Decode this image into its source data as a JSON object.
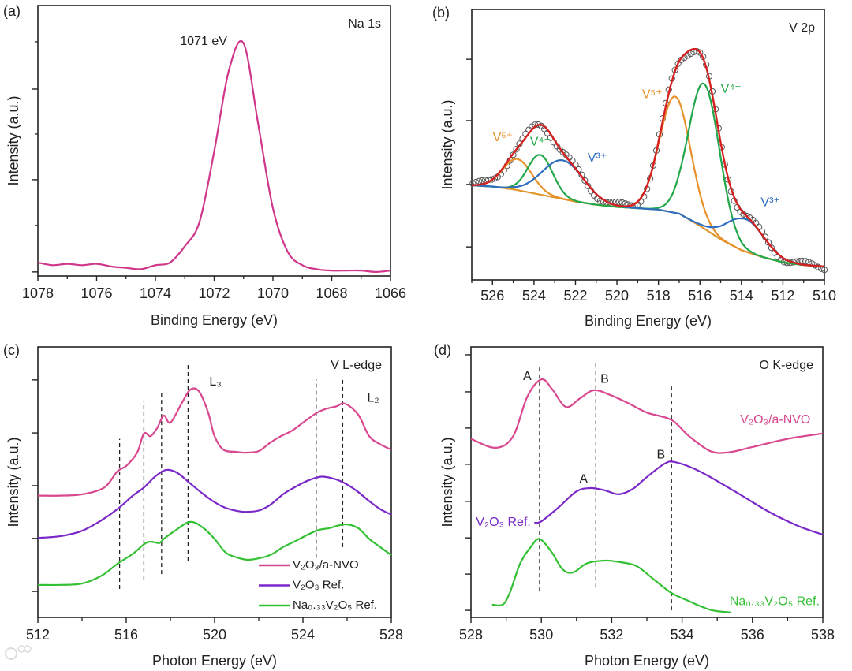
{
  "watermark": "大数跨境",
  "chart_data": [
    {
      "type": "line",
      "panel": "(a)",
      "title": "Na 1s",
      "xlabel": "Binding Energy (eV)",
      "ylabel": "Intensity (a.u.)",
      "xlim": [
        1078,
        1066
      ],
      "ylim": [
        0,
        1
      ],
      "xticks": [
        1078,
        1076,
        1074,
        1072,
        1070,
        1068,
        1066
      ],
      "xminor_step": 1,
      "yticks": [
        0.015,
        0.356,
        0.691
      ],
      "yminor": [
        0.187,
        0.525,
        0.866
      ],
      "series": [
        {
          "name": "Na 1s spectrum",
          "color": "#d0368a",
          "x": [
            1078,
            1077.5,
            1077,
            1076.5,
            1076,
            1075.5,
            1075,
            1074.5,
            1074,
            1073.5,
            1073,
            1072.5,
            1072,
            1071.5,
            1071,
            1070.5,
            1070,
            1069.5,
            1069,
            1068.5,
            1068,
            1067.5,
            1067,
            1066.5,
            1066
          ],
          "y": [
            0.05,
            0.04,
            0.045,
            0.04,
            0.045,
            0.035,
            0.03,
            0.025,
            0.04,
            0.05,
            0.11,
            0.2,
            0.46,
            0.76,
            0.86,
            0.56,
            0.25,
            0.09,
            0.04,
            0.025,
            0.02,
            0.02,
            0.02,
            0.015,
            0.02
          ]
        }
      ],
      "annotations": [
        {
          "text": "1071 eV",
          "x": 1072.36,
          "y": 0.866,
          "color": "#222222"
        }
      ]
    },
    {
      "type": "line",
      "panel": "(b)",
      "title": "V 2p",
      "xlabel": "Binding Energy (eV)",
      "ylabel": "Intensity (a.u.)",
      "xlim": [
        527,
        510
      ],
      "ylim": [
        0,
        1
      ],
      "xticks": [
        526,
        524,
        522,
        520,
        518,
        516,
        514,
        512,
        510
      ],
      "xminor_step": 1,
      "yticks": [
        0.122,
        0.353,
        0.589,
        0.816
      ],
      "yminor": [],
      "background": {
        "color": "#e0962e",
        "x": [
          527,
          526,
          525,
          524,
          523,
          522,
          521,
          520,
          519,
          518,
          517,
          516,
          515,
          514,
          513,
          512,
          511,
          510
        ],
        "y": [
          0.35,
          0.345,
          0.335,
          0.32,
          0.305,
          0.29,
          0.278,
          0.27,
          0.265,
          0.26,
          0.245,
          0.2,
          0.15,
          0.11,
          0.085,
          0.065,
          0.055,
          0.05
        ]
      },
      "components": [
        {
          "name": "V5+",
          "color": "#e8912a",
          "peaks": [
            {
              "center": 524.8,
              "height": 0.115,
              "sigma": 0.7
            },
            {
              "center": 517.2,
              "height": 0.43,
              "sigma": 0.75
            }
          ]
        },
        {
          "name": "V4+",
          "color": "#22a84a",
          "peaks": [
            {
              "center": 523.7,
              "height": 0.147,
              "sigma": 0.6
            },
            {
              "center": 515.8,
              "height": 0.535,
              "sigma": 0.75
            }
          ]
        },
        {
          "name": "V3+",
          "color": "#2f6fc0",
          "peaks": [
            {
              "center": 522.6,
              "height": 0.143,
              "sigma": 1.0
            },
            {
              "center": 513.8,
              "height": 0.12,
              "sigma": 0.9
            }
          ]
        }
      ],
      "fit_color": "#d62020",
      "data_marker_color": "#555555",
      "annotations": [
        {
          "text": "V⁵⁺",
          "x": 525.5,
          "y": 0.525,
          "color": "#e8912a"
        },
        {
          "text": "V⁴⁺",
          "x": 523.7,
          "y": 0.51,
          "color": "#22a84a"
        },
        {
          "text": "V³⁺",
          "x": 520.95,
          "y": 0.45,
          "color": "#2f6fc0"
        },
        {
          "text": "V⁵⁺",
          "x": 518.3,
          "y": 0.685,
          "color": "#e8912a"
        },
        {
          "text": "V⁴⁺",
          "x": 514.5,
          "y": 0.705,
          "color": "#22a84a"
        },
        {
          "text": "V³⁺",
          "x": 512.6,
          "y": 0.285,
          "color": "#2f6fc0"
        }
      ]
    },
    {
      "type": "line",
      "panel": "(c)",
      "title": "V L-edge",
      "xlabel": "Photon Energy (eV)",
      "ylabel": "Intensity (a.u.)",
      "xlim": [
        512,
        528
      ],
      "ylim": [
        0,
        1
      ],
      "xticks": [
        512,
        516,
        520,
        524,
        528
      ],
      "xminor_step": 2,
      "yticks": [
        0.096,
        0.292,
        0.487,
        0.682,
        0.878
      ],
      "yminor": [],
      "series": [
        {
          "name": "V₂O₃/a-NVO",
          "color": "#d9478f",
          "x": [
            512,
            513,
            514,
            515,
            515.6,
            516,
            516.5,
            516.8,
            517.1,
            517.4,
            517.7,
            518,
            518.5,
            518.9,
            519.3,
            519.7,
            520,
            520.4,
            521,
            521.4,
            522,
            522.5,
            523,
            523.5,
            524,
            524.6,
            525,
            525.5,
            525.9,
            526.5,
            527,
            527.5,
            528
          ],
          "y": [
            0.45,
            0.45,
            0.455,
            0.48,
            0.54,
            0.56,
            0.61,
            0.68,
            0.67,
            0.7,
            0.746,
            0.72,
            0.79,
            0.842,
            0.835,
            0.76,
            0.67,
            0.62,
            0.612,
            0.609,
            0.615,
            0.645,
            0.67,
            0.69,
            0.72,
            0.755,
            0.77,
            0.78,
            0.79,
            0.75,
            0.67,
            0.64,
            0.62
          ]
        },
        {
          "name": "V₂O₃ Ref.",
          "color": "#7a28c8",
          "x": [
            512,
            513,
            514,
            514.9,
            515.6,
            516.3,
            516.8,
            517.3,
            517.8,
            518.3,
            518.9,
            519.5,
            520,
            520.5,
            521,
            521.4,
            522,
            522.5,
            523.1,
            523.6,
            524.2,
            524.8,
            525.3,
            525.8,
            526.4,
            527,
            527.5,
            528
          ],
          "y": [
            0.294,
            0.3,
            0.32,
            0.36,
            0.4,
            0.45,
            0.48,
            0.52,
            0.545,
            0.535,
            0.495,
            0.455,
            0.426,
            0.405,
            0.394,
            0.39,
            0.395,
            0.415,
            0.455,
            0.48,
            0.505,
            0.52,
            0.515,
            0.5,
            0.47,
            0.43,
            0.4,
            0.38
          ]
        },
        {
          "name": "Na₀.₃₃V₂O₅ Ref.",
          "color": "#33c033",
          "x": [
            512,
            513,
            514,
            514.9,
            515.6,
            516.3,
            516.8,
            517.1,
            517.5,
            517.7,
            518.2,
            518.9,
            519.5,
            520,
            520.5,
            521,
            521.6,
            522.5,
            523.1,
            523.6,
            524.6,
            525.2,
            525.9,
            526.5,
            527,
            527.5,
            528
          ],
          "y": [
            0.12,
            0.12,
            0.125,
            0.155,
            0.198,
            0.235,
            0.27,
            0.28,
            0.275,
            0.29,
            0.32,
            0.353,
            0.33,
            0.29,
            0.24,
            0.222,
            0.213,
            0.23,
            0.26,
            0.28,
            0.32,
            0.33,
            0.344,
            0.33,
            0.29,
            0.26,
            0.23
          ]
        }
      ],
      "dashed_lines": [
        {
          "x": 515.7,
          "y0": 0.105,
          "y1": 0.66
        },
        {
          "x": 516.8,
          "y0": 0.14,
          "y1": 0.8
        },
        {
          "x": 517.6,
          "y0": 0.16,
          "y1": 0.84
        },
        {
          "x": 518.8,
          "y0": 0.21,
          "y1": 0.94
        },
        {
          "x": 524.6,
          "y0": 0.22,
          "y1": 0.88
        },
        {
          "x": 525.8,
          "y0": 0.26,
          "y1": 0.89
        }
      ],
      "annotations": [
        {
          "text": "L₃",
          "x": 520.04,
          "y": 0.87,
          "color": "#222222"
        },
        {
          "text": "L₂",
          "x": 527.18,
          "y": 0.81,
          "color": "#222222"
        }
      ],
      "legend": {
        "placement": "bottom-right",
        "entries": [
          "V₂O₃/a-NVO",
          "V₂O₃ Ref.",
          "Na₀.₃₃V₂O₅ Ref."
        ]
      }
    },
    {
      "type": "line",
      "panel": "(d)",
      "title": "O K-edge",
      "xlabel": "Photon Energy (eV)",
      "ylabel": "Intensity (a.u.)",
      "xlim": [
        528,
        538
      ],
      "ylim": [
        0,
        1
      ],
      "xticks": [
        528,
        530,
        532,
        534,
        536,
        538
      ],
      "xminor_step": 1,
      "yticks": [
        0.026,
        0.16,
        0.294,
        0.429,
        0.566,
        0.7,
        0.834,
        0.971
      ],
      "yminor": [],
      "series": [
        {
          "name": "V₂O₃/a-NVO",
          "color": "#d9478f",
          "x": [
            528,
            528.7,
            529.2,
            529.6,
            530,
            530.3,
            530.7,
            531.1,
            531.5,
            532,
            532.5,
            533,
            533.7,
            534.2,
            534.8,
            535.3,
            536,
            537,
            538
          ],
          "y": [
            0.66,
            0.627,
            0.67,
            0.816,
            0.88,
            0.845,
            0.778,
            0.81,
            0.84,
            0.82,
            0.79,
            0.757,
            0.73,
            0.67,
            0.615,
            0.61,
            0.63,
            0.66,
            0.68
          ]
        },
        {
          "name": "V₂O₃ Ref.",
          "color": "#7a28c8",
          "x": [
            529.8,
            530,
            530.5,
            531,
            531.4,
            531.8,
            532.2,
            532.6,
            533,
            533.5,
            533.8,
            534.5,
            535.5,
            536.5,
            537.3,
            538
          ],
          "y": [
            0.35,
            0.355,
            0.408,
            0.466,
            0.478,
            0.47,
            0.455,
            0.475,
            0.519,
            0.568,
            0.574,
            0.54,
            0.466,
            0.388,
            0.338,
            0.306
          ]
        },
        {
          "name": "Na₀.₃₃V₂O₅ Ref.",
          "color": "#33c033",
          "x": [
            528.6,
            528.9,
            529.1,
            529.4,
            529.7,
            529.95,
            530.3,
            530.6,
            530.9,
            531.3,
            531.8,
            532.2,
            532.7,
            533.2,
            533.7,
            534.2,
            534.8,
            535.4
          ],
          "y": [
            0.047,
            0.047,
            0.09,
            0.2,
            0.26,
            0.29,
            0.24,
            0.178,
            0.166,
            0.2,
            0.21,
            0.205,
            0.19,
            0.14,
            0.09,
            0.06,
            0.028,
            0.018
          ]
        }
      ],
      "dashed_lines": [
        {
          "x": 529.95,
          "y0": 0.096,
          "y1": 0.93
        },
        {
          "x": 531.55,
          "y0": 0.11,
          "y1": 0.945
        },
        {
          "x": 533.7,
          "y0": 0.026,
          "y1": 0.86
        }
      ],
      "annotations": [
        {
          "text": "A",
          "x": 529.6,
          "y": 0.89,
          "color": "#222222"
        },
        {
          "text": "B",
          "x": 531.8,
          "y": 0.88,
          "color": "#222222"
        },
        {
          "text": "A",
          "x": 531.2,
          "y": 0.51,
          "color": "#222222"
        },
        {
          "text": "B",
          "x": 533.4,
          "y": 0.6,
          "color": "#222222"
        },
        {
          "text": "V₂O₃/a-NVO",
          "x": 536.65,
          "y": 0.729,
          "color": "#d9478f"
        },
        {
          "text": "V₂O₃ Ref.",
          "x": 528.92,
          "y": 0.35,
          "color": "#7a28c8"
        },
        {
          "text": "Na₀.₃₃V₂O₅ Ref.",
          "x": 536.63,
          "y": 0.058,
          "color": "#33c033"
        }
      ]
    }
  ]
}
